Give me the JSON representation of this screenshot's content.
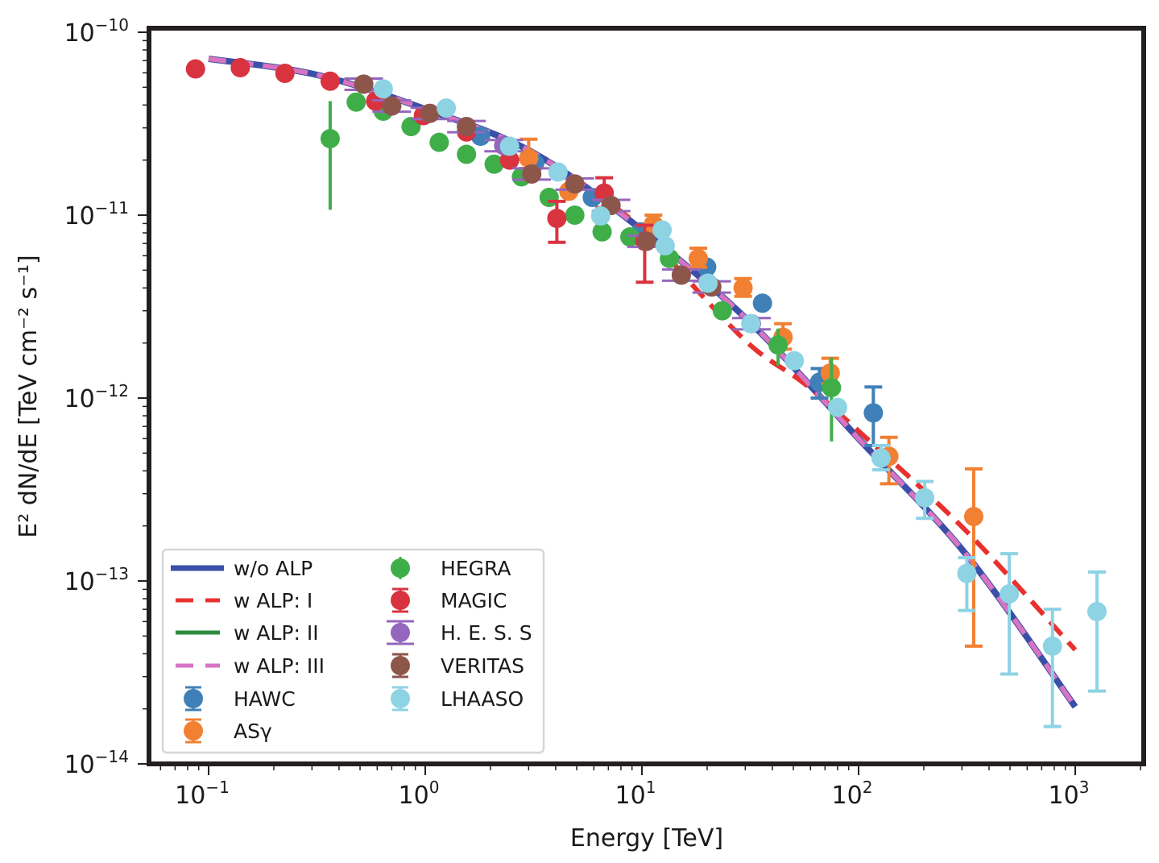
{
  "chart_data": {
    "type": "scatter",
    "title": "",
    "xlabel": "Energy [TeV]",
    "ylabel": "E² dN/dE [TeV cm⁻² s⁻¹]",
    "xscale": "log",
    "yscale": "log",
    "xlim": [
      0.053,
      2090
    ],
    "ylim": [
      1e-14,
      1e-10
    ],
    "grid": false,
    "legend_position": "lower-left",
    "xticks": [
      {
        "value": 0.1,
        "base": "10",
        "exp": "−1"
      },
      {
        "value": 1,
        "base": "10",
        "exp": "0"
      },
      {
        "value": 10,
        "base": "10",
        "exp": "1"
      },
      {
        "value": 100,
        "base": "10",
        "exp": "2"
      },
      {
        "value": 1000,
        "base": "10",
        "exp": "3"
      }
    ],
    "yticks": [
      {
        "value": 1e-10,
        "base": "10",
        "exp": "−10"
      },
      {
        "value": 1e-11,
        "base": "10",
        "exp": "−11"
      },
      {
        "value": 1e-12,
        "base": "10",
        "exp": "−12"
      },
      {
        "value": 1e-13,
        "base": "10",
        "exp": "−13"
      },
      {
        "value": 1e-14,
        "base": "10",
        "exp": "−14"
      }
    ],
    "curves": [
      {
        "name": "w/o ALP",
        "label": "w/o ALP",
        "color": "#3a4fa8",
        "style": "solid",
        "x": [
          0.1,
          0.316,
          1,
          3.16,
          10,
          31.6,
          100,
          316,
          1000
        ],
        "y": [
          7.16e-11,
          5.85e-11,
          3.8e-11,
          2.19e-11,
          8.3e-12,
          2.59e-12,
          6e-13,
          1.38e-13,
          2.05e-14
        ]
      },
      {
        "name": "w ALP: I",
        "label": "w ALP: I",
        "color": "#e8312f",
        "style": "dashed",
        "x": [
          0.1,
          0.316,
          1,
          3.16,
          10,
          15.8,
          31.6,
          56.2,
          100,
          316,
          1000
        ],
        "y": [
          7.16e-11,
          5.85e-11,
          3.8e-11,
          2.19e-11,
          8.5e-12,
          4.6e-12,
          1.95e-12,
          1.2e-12,
          6.6e-13,
          1.86e-13,
          4.2e-14
        ]
      },
      {
        "name": "w ALP: II",
        "label": "w ALP: II",
        "color": "#2e8b3e",
        "style": "solid",
        "x": [
          0.1,
          0.316,
          1,
          3.16,
          10,
          31.6,
          100,
          316,
          1000
        ],
        "y": [
          7.16e-11,
          5.85e-11,
          3.8e-11,
          2.19e-11,
          8.3e-12,
          2.59e-12,
          6e-13,
          1.38e-13,
          2.05e-14
        ]
      },
      {
        "name": "w ALP: III",
        "label": "w ALP: III",
        "color": "#d873c4",
        "style": "dashed",
        "x": [
          0.1,
          0.316,
          1,
          3.16,
          10,
          31.6,
          100,
          316,
          1000
        ],
        "y": [
          7.16e-11,
          5.85e-11,
          3.8e-11,
          2.19e-11,
          8.3e-12,
          2.59e-12,
          6e-13,
          1.38e-13,
          2.05e-14
        ]
      }
    ],
    "series": [
      {
        "name": "HAWC",
        "label": "HAWC",
        "color": "#3f80b8",
        "points": [
          {
            "x": 1.8,
            "y": 2.7e-11
          },
          {
            "x": 3.2,
            "y": 1.92e-11
          },
          {
            "x": 5.9,
            "y": 1.25e-11
          },
          {
            "x": 9.9,
            "y": 8.1e-12
          },
          {
            "x": 19.9,
            "y": 5.2e-12
          },
          {
            "x": 36,
            "y": 3.3e-12
          },
          {
            "x": 66,
            "y": 1.22e-12,
            "ylo": 1e-12,
            "yhi": 1.45e-12
          },
          {
            "x": 117,
            "y": 8.3e-13,
            "ylo": 5.5e-13,
            "yhi": 1.15e-12
          }
        ]
      },
      {
        "name": "ASγ",
        "label": "ASγ",
        "color": "#f28032",
        "points": [
          {
            "x": 3.0,
            "y": 2.05e-11,
            "ylo": 1.8e-11,
            "yhi": 2.6e-11
          },
          {
            "x": 4.6,
            "y": 1.35e-11
          },
          {
            "x": 11.3,
            "y": 8.9e-12,
            "ylo": 7.8e-12,
            "yhi": 1e-11
          },
          {
            "x": 18.2,
            "y": 5.8e-12,
            "ylo": 5.2e-12,
            "yhi": 6.6e-12
          },
          {
            "x": 29.3,
            "y": 4e-12,
            "ylo": 3.6e-12,
            "yhi": 4.5e-12
          },
          {
            "x": 44.8,
            "y": 2.15e-12,
            "ylo": 1.85e-12,
            "yhi": 2.55e-12
          },
          {
            "x": 74,
            "y": 1.37e-12,
            "ylo": 1.2e-12,
            "yhi": 1.65e-12
          },
          {
            "x": 138,
            "y": 4.8e-13,
            "ylo": 3.4e-13,
            "yhi": 6.1e-13
          },
          {
            "x": 340,
            "y": 2.25e-13,
            "ylo": 4.4e-14,
            "yhi": 4.1e-13
          }
        ]
      },
      {
        "name": "HEGRA",
        "label": "HEGRA",
        "color": "#3fae49",
        "points": [
          {
            "x": 0.364,
            "y": 2.62e-11,
            "ylo": 1.07e-11,
            "yhi": 4.2e-11
          },
          {
            "x": 0.48,
            "y": 4.15e-11
          },
          {
            "x": 0.64,
            "y": 3.7e-11
          },
          {
            "x": 0.86,
            "y": 3.05e-11
          },
          {
            "x": 1.16,
            "y": 2.5e-11
          },
          {
            "x": 1.55,
            "y": 2.15e-11
          },
          {
            "x": 2.08,
            "y": 1.9e-11
          },
          {
            "x": 2.78,
            "y": 1.62e-11
          },
          {
            "x": 3.73,
            "y": 1.25e-11
          },
          {
            "x": 4.9,
            "y": 1e-11
          },
          {
            "x": 6.55,
            "y": 8.1e-12
          },
          {
            "x": 8.8,
            "y": 7.6e-12
          },
          {
            "x": 13.4,
            "y": 5.8e-12
          },
          {
            "x": 23.5,
            "y": 3e-12
          },
          {
            "x": 42.5,
            "y": 1.95e-12,
            "ylo": 1.5e-12,
            "yhi": 2.4e-12
          },
          {
            "x": 75,
            "y": 1.14e-12,
            "ylo": 5.8e-13,
            "yhi": 1.67e-12
          }
        ]
      },
      {
        "name": "MAGIC",
        "label": "MAGIC",
        "color": "#d93340",
        "points": [
          {
            "x": 0.087,
            "y": 6.3e-11
          },
          {
            "x": 0.14,
            "y": 6.4e-11
          },
          {
            "x": 0.225,
            "y": 5.96e-11
          },
          {
            "x": 0.364,
            "y": 5.4e-11
          },
          {
            "x": 0.59,
            "y": 4.2e-11
          },
          {
            "x": 0.98,
            "y": 3.5e-11
          },
          {
            "x": 1.55,
            "y": 2.85e-11
          },
          {
            "x": 2.45,
            "y": 2e-11
          },
          {
            "x": 4.05,
            "y": 9.6e-12,
            "ylo": 7.1e-12,
            "yhi": 1.19e-11
          },
          {
            "x": 6.7,
            "y": 1.32e-11,
            "ylo": 1.1e-11,
            "yhi": 1.6e-11
          },
          {
            "x": 10.3,
            "y": 7.2e-12,
            "ylo": 4.3e-12,
            "yhi": 8.8e-12
          }
        ]
      },
      {
        "name": "H.E.S.S",
        "label": "H. E. S. S",
        "color": "#9467bd",
        "points": [
          {
            "x": 0.52,
            "y": 5.2e-11
          },
          {
            "x": 0.7,
            "y": 3.95e-11
          },
          {
            "x": 1.05,
            "y": 3.6e-11
          },
          {
            "x": 1.55,
            "y": 3.05e-11
          },
          {
            "x": 2.3,
            "y": 2.4e-11
          },
          {
            "x": 3.1,
            "y": 1.68e-11
          },
          {
            "x": 4.9,
            "y": 1.48e-11
          },
          {
            "x": 7.2,
            "y": 1.13e-11
          },
          {
            "x": 10.5,
            "y": 7.2e-12
          },
          {
            "x": 15.2,
            "y": 4.7e-12
          },
          {
            "x": 21.0,
            "y": 4.05e-12
          },
          {
            "x": 32,
            "y": 2.55e-12
          }
        ]
      },
      {
        "name": "VERITAS",
        "label": "VERITAS",
        "color": "#8c564b",
        "points": [
          {
            "x": 0.52,
            "y": 5.2e-11
          },
          {
            "x": 0.7,
            "y": 3.95e-11
          },
          {
            "x": 1.05,
            "y": 3.6e-11
          },
          {
            "x": 1.55,
            "y": 3.05e-11
          },
          {
            "x": 3.1,
            "y": 1.68e-11
          },
          {
            "x": 4.9,
            "y": 1.48e-11
          },
          {
            "x": 7.2,
            "y": 1.13e-11
          },
          {
            "x": 10.5,
            "y": 7.2e-12
          },
          {
            "x": 15.2,
            "y": 4.7e-12
          },
          {
            "x": 21.0,
            "y": 4.05e-12
          }
        ]
      },
      {
        "name": "LHAASO",
        "label": "LHAASO",
        "color": "#8dd3e3",
        "points": [
          {
            "x": 0.64,
            "y": 4.9e-11
          },
          {
            "x": 1.25,
            "y": 3.85e-11
          },
          {
            "x": 2.45,
            "y": 2.38e-11
          },
          {
            "x": 4.1,
            "y": 1.72e-11
          },
          {
            "x": 6.45,
            "y": 9.9e-12
          },
          {
            "x": 12.4,
            "y": 8.3e-12
          },
          {
            "x": 12.8,
            "y": 6.8e-12
          },
          {
            "x": 20.2,
            "y": 4.25e-12
          },
          {
            "x": 31.8,
            "y": 2.55e-12
          },
          {
            "x": 50.5,
            "y": 1.6e-12
          },
          {
            "x": 80,
            "y": 8.9e-13
          },
          {
            "x": 127,
            "y": 4.7e-13,
            "ylo": 4.05e-13,
            "yhi": 5.5e-13
          },
          {
            "x": 202,
            "y": 2.85e-13,
            "ylo": 2.2e-13,
            "yhi": 3.5e-13
          },
          {
            "x": 316,
            "y": 1.1e-13,
            "ylo": 6.9e-14,
            "yhi": 1.34e-13
          },
          {
            "x": 496,
            "y": 8.5e-14,
            "ylo": 3.1e-14,
            "yhi": 1.41e-13
          },
          {
            "x": 785,
            "y": 4.4e-14,
            "ylo": 1.6e-14,
            "yhi": 7e-14
          },
          {
            "x": 1260,
            "y": 6.8e-14,
            "ylo": 2.5e-14,
            "yhi": 1.12e-13
          }
        ]
      }
    ],
    "legend": {
      "columns": [
        [
          "w/o ALP",
          "w ALP: I",
          "w ALP: II",
          "w ALP: III",
          "HAWC",
          "ASγ"
        ],
        [
          "HEGRA",
          "MAGIC",
          "H. E. S. S",
          "VERITAS",
          "LHAASO"
        ]
      ]
    }
  }
}
